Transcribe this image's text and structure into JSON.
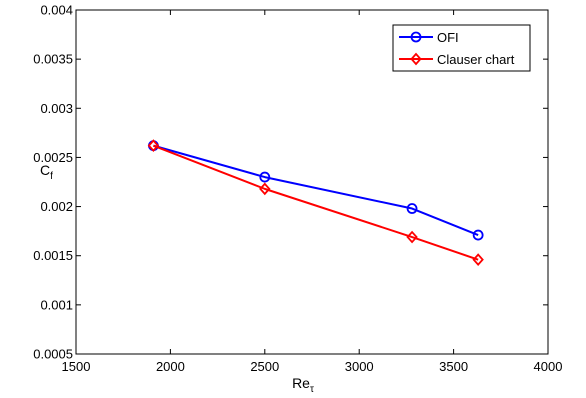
{
  "chart_data": {
    "type": "line",
    "x_label_main": "Re",
    "x_label_sub": "τ",
    "y_label_main": "C",
    "y_label_sub": "f",
    "xlim": [
      1500,
      4000
    ],
    "ylim": [
      0.0005,
      0.004
    ],
    "x_ticks": [
      1500,
      2000,
      2500,
      3000,
      3500,
      4000
    ],
    "x_tick_labels": [
      "1500",
      "2000",
      "2500",
      "3000",
      "3500",
      "4000"
    ],
    "y_ticks": [
      0.0005,
      0.001,
      0.0015,
      0.002,
      0.0025,
      0.003,
      0.0035,
      0.004
    ],
    "y_tick_labels": [
      "0.0005",
      "0.001",
      "0.0015",
      "0.002",
      "0.0025",
      "0.003",
      "0.0035",
      "0.004"
    ],
    "grid": false,
    "legend_position": "top-right",
    "series": [
      {
        "name": "OFI",
        "color": "#0000ff",
        "marker": "circle",
        "x": [
          1910,
          2500,
          3280,
          3630
        ],
        "y": [
          0.00262,
          0.0023,
          0.00198,
          0.00171
        ]
      },
      {
        "name": "Clauser chart",
        "color": "#ff0000",
        "marker": "diamond",
        "x": [
          1910,
          2500,
          3280,
          3630
        ],
        "y": [
          0.00262,
          0.00218,
          0.00169,
          0.00146
        ]
      }
    ]
  }
}
